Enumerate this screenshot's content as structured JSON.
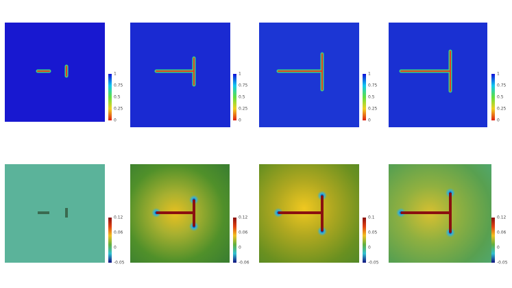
{
  "rows": [
    {
      "panels": [
        {
          "ticks": [
            "1",
            "0.75",
            "0.5",
            "0.25",
            "0"
          ]
        },
        {
          "ticks": [
            "1",
            "0.75",
            "0.5",
            "0.25",
            "0"
          ]
        },
        {
          "ticks": [
            "1",
            "0.75",
            "0.5",
            "0.25",
            "0"
          ]
        },
        {
          "ticks": [
            "1",
            "0.75",
            "0.5",
            "0.25",
            "0"
          ]
        }
      ]
    },
    {
      "panels": [
        {
          "ticks": [
            "0.12",
            "0.06",
            "0",
            "-0.05"
          ]
        },
        {
          "ticks": [
            "0.12",
            "0.06",
            "0",
            "-0.06"
          ]
        },
        {
          "ticks": [
            "0.1",
            "0.05",
            "0",
            "-0.05"
          ]
        },
        {
          "ticks": [
            "0.12",
            "0.06",
            "0",
            "-0.05"
          ]
        }
      ]
    }
  ]
}
